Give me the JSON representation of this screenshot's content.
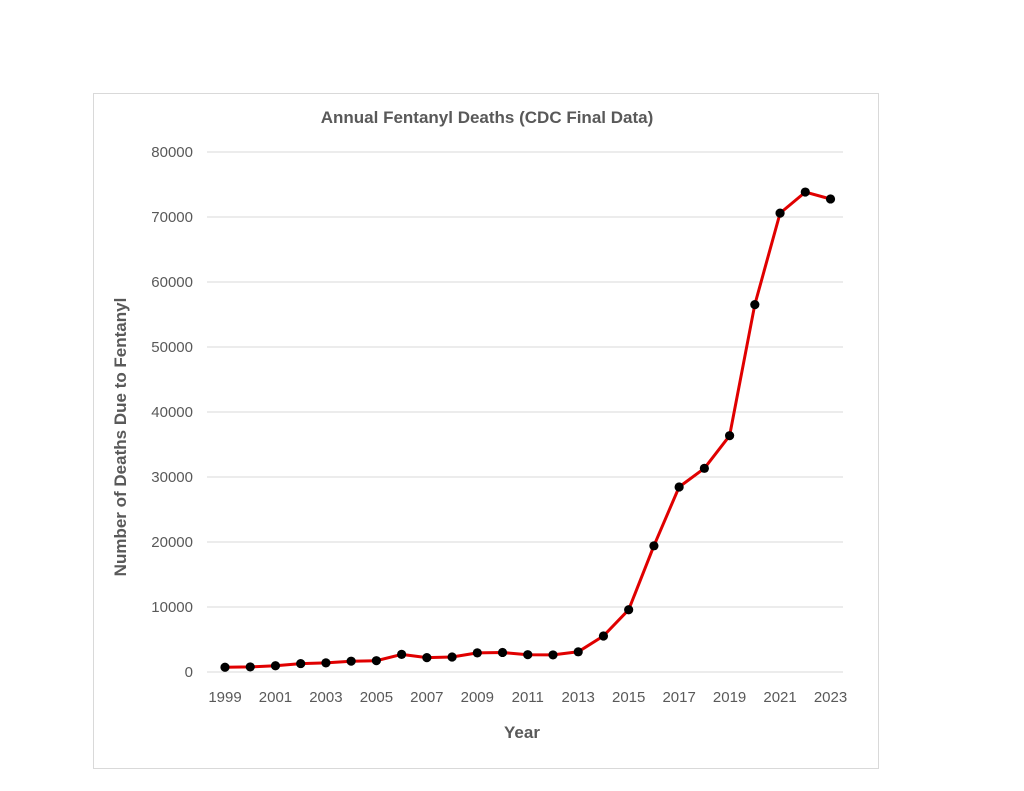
{
  "chart_data": {
    "type": "line",
    "title": "Annual Fentanyl Deaths (CDC Final Data)",
    "xlabel": "Year",
    "ylabel": "Number of Deaths Due to Fentanyl",
    "ylim": [
      0,
      80000
    ],
    "yticks": [
      "0",
      "10000",
      "20000",
      "30000",
      "40000",
      "50000",
      "60000",
      "70000",
      "80000"
    ],
    "xticks": [
      "1999",
      "2001",
      "2003",
      "2005",
      "2007",
      "2009",
      "2011",
      "2013",
      "2015",
      "2017",
      "2019",
      "2021",
      "2023"
    ],
    "grid": true,
    "legend": "none",
    "line_color": "#e00000",
    "marker_color": "#000000",
    "series": [
      {
        "x": [
          1999,
          2000,
          2001,
          2002,
          2003,
          2004,
          2005,
          2006,
          2007,
          2008,
          2009,
          2010,
          2011,
          2012,
          2013,
          2014,
          2015,
          2016,
          2017,
          2018,
          2019,
          2020,
          2021,
          2022,
          2023
        ],
        "values": [
          730,
          782,
          957,
          1295,
          1400,
          1664,
          1742,
          2707,
          2213,
          2306,
          2946,
          3007,
          2666,
          2628,
          3105,
          5544,
          9580,
          19413,
          28466,
          31335,
          36359,
          56516,
          70601,
          73838,
          72776
        ]
      }
    ]
  }
}
